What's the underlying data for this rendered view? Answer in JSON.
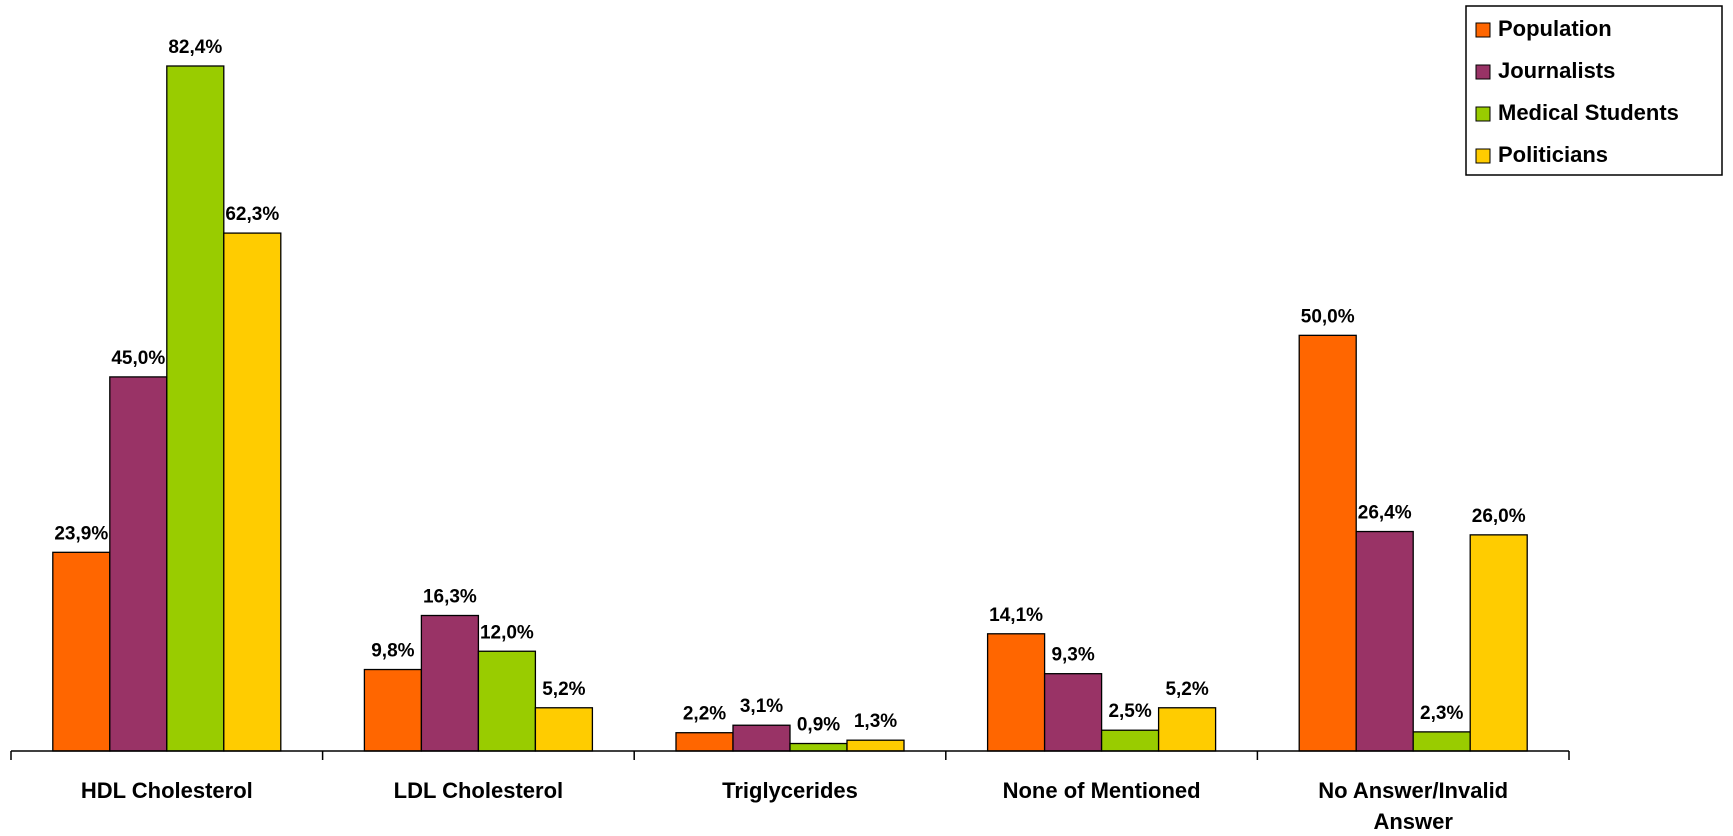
{
  "chart_data": {
    "type": "bar",
    "categories": [
      "HDL Cholesterol",
      "LDL Cholesterol",
      "Triglycerides",
      "None of Mentioned",
      "No Answer/Invalid Answer"
    ],
    "series": [
      {
        "name": "Population",
        "color": "#FF6600",
        "values": [
          23.9,
          9.8,
          2.2,
          14.1,
          50.0
        ],
        "value_labels": [
          "23,9%",
          "9,8%",
          "2,2%",
          "14,1%",
          "50,0%"
        ]
      },
      {
        "name": "Journalists",
        "color": "#993366",
        "values": [
          45.0,
          16.3,
          3.1,
          9.3,
          26.4
        ],
        "value_labels": [
          "45,0%",
          "16,3%",
          "3,1%",
          "9,3%",
          "26,4%"
        ]
      },
      {
        "name": "Medical Students",
        "color": "#99CC00",
        "values": [
          82.4,
          12.0,
          0.9,
          2.5,
          2.3
        ],
        "value_labels": [
          "82,4%",
          "12,0%",
          "0,9%",
          "2,5%",
          "2,3%"
        ]
      },
      {
        "name": "Politicians",
        "color": "#FFCC00",
        "values": [
          62.3,
          5.2,
          1.3,
          5.2,
          26.0
        ],
        "value_labels": [
          "62,3%",
          "5,2%",
          "1,3%",
          "5,2%",
          "26,0%"
        ]
      }
    ],
    "legend": "top-right"
  }
}
